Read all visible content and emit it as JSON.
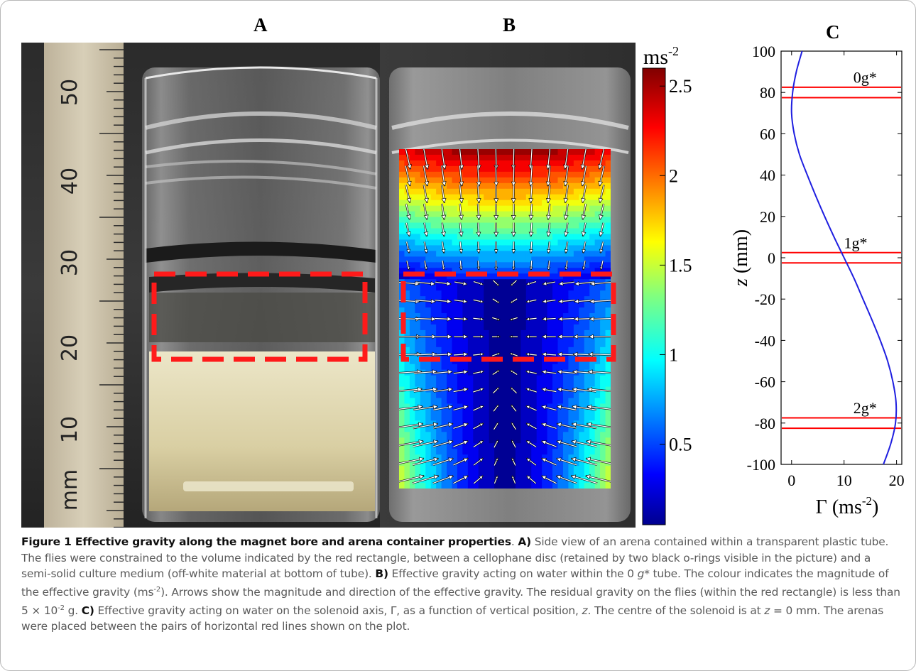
{
  "panels": {
    "a_label": "A",
    "b_label": "B",
    "c_label": "C"
  },
  "ruler": {
    "numbers": [
      "50",
      "40",
      "30",
      "20",
      "10"
    ],
    "unit": "mm"
  },
  "colorbar": {
    "unit_base": "ms",
    "unit_exp": "-2",
    "ticks": [
      "2.5",
      "2",
      "1.5",
      "1",
      "0.5"
    ],
    "tick_values": [
      2.5,
      2.0,
      1.5,
      1.0,
      0.5
    ],
    "range": [
      0.05,
      2.6
    ]
  },
  "chart_data": {
    "type": "line",
    "xlabel_symbol": "Γ",
    "xlabel_unit": "(ms",
    "xlabel_exp": "-2",
    "xlabel_close": ")",
    "ylabel_symbol": "z",
    "ylabel_unit": "(mm)",
    "xlim": [
      -2,
      21
    ],
    "ylim": [
      -100,
      100
    ],
    "xticks": [
      0,
      10,
      20
    ],
    "yticks": [
      100,
      80,
      60,
      40,
      20,
      0,
      -20,
      -40,
      -60,
      -80,
      -100
    ],
    "series": [
      {
        "color": "#1f1fe0",
        "points": [
          [
            2.0,
            100
          ],
          [
            0.9,
            90
          ],
          [
            0.2,
            80
          ],
          [
            0.0,
            70
          ],
          [
            0.5,
            60
          ],
          [
            1.5,
            50
          ],
          [
            3.0,
            40
          ],
          [
            4.6,
            30
          ],
          [
            6.3,
            20
          ],
          [
            8.1,
            10
          ],
          [
            10.0,
            0
          ],
          [
            11.9,
            -10
          ],
          [
            13.6,
            -20
          ],
          [
            15.3,
            -30
          ],
          [
            16.9,
            -40
          ],
          [
            18.3,
            -50
          ],
          [
            19.3,
            -60
          ],
          [
            19.9,
            -70
          ],
          [
            19.8,
            -80
          ],
          [
            18.9,
            -90
          ],
          [
            17.5,
            -100
          ]
        ]
      }
    ],
    "marker_lines": [
      {
        "y": 82.5,
        "color": "#ff0000"
      },
      {
        "y": 77.5,
        "color": "#ff0000"
      },
      {
        "y": 2.5,
        "color": "#ff0000"
      },
      {
        "y": -2.5,
        "color": "#ff0000"
      },
      {
        "y": -77.5,
        "color": "#ff0000"
      },
      {
        "y": -82.5,
        "color": "#ff0000"
      }
    ],
    "annotations": [
      {
        "text": "0g*",
        "x": 14,
        "y": 84
      },
      {
        "text": "1g*",
        "x": 12.2,
        "y": 4
      },
      {
        "text": "2g*",
        "x": 14,
        "y": -76
      }
    ]
  },
  "caption": {
    "head": "Figure 1 Effective gravity along the magnet bore and arena container properties",
    "a_tag": "A)",
    "a_text": " Side view of an arena contained within a transparent plastic tube. The flies were constrained to the volume indicated by the red rectangle, between a cellophane disc (retained by two black o-rings visible in the picture) and a semi-solid culture medium (off-white material at bottom of tube). ",
    "b_tag": "B)",
    "b_text1": " Effective gravity acting on water within the 0 ",
    "b_g": "g",
    "b_text2": "* tube. The colour indicates the magnitude of the effective gravity (ms",
    "b_exp": "-2",
    "b_text3": "). Arrows show the magnitude and direction of the effective gravity. The residual gravity on the flies (within the red rectangle) is less than 5 × 10",
    "b_exp2": "-2",
    "b_text4": " g. ",
    "c_tag": "C)",
    "c_text1": " Effective gravity acting on water on the solenoid axis, Γ, as a function of vertical position, ",
    "c_z1": "z",
    "c_text2": ". The centre of the solenoid is at ",
    "c_z2": "z",
    "c_text3": " = 0 mm. The arenas were placed between the pairs of horizontal red lines shown on the plot."
  }
}
